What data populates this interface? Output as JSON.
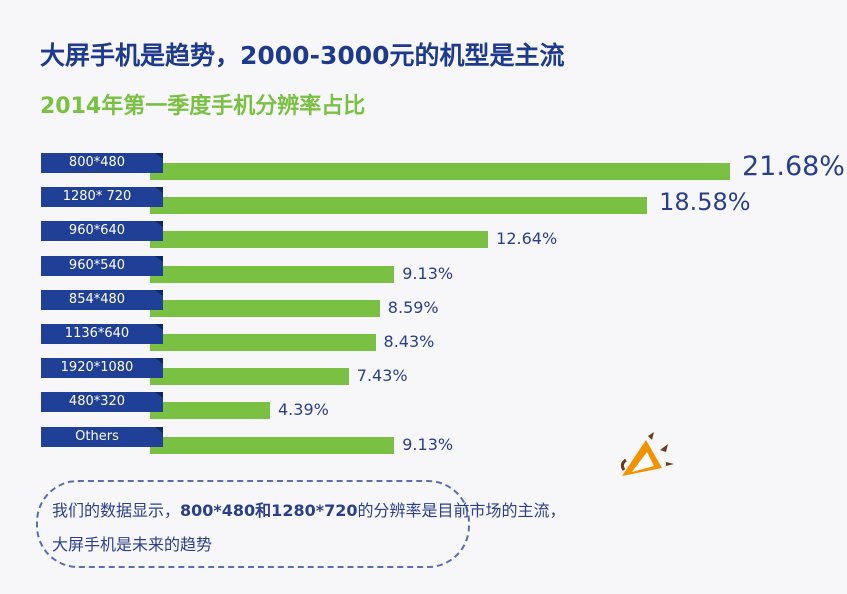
{
  "header": {
    "title": "大屏手机是趋势，2000-3000元的机型是主流",
    "subtitle": "2014年第一季度手机分辨率占比"
  },
  "chart_data": {
    "type": "bar",
    "orientation": "horizontal",
    "title": "2014年第一季度手机分辨率占比",
    "categories": [
      "800*480",
      "1280* 720",
      "960*640",
      "960*540",
      "854*480",
      "1136*640",
      "1920*1080",
      "480*320",
      "Others"
    ],
    "values": [
      21.68,
      18.58,
      12.64,
      9.13,
      8.59,
      8.43,
      7.43,
      4.39,
      9.13
    ],
    "labels": [
      "21.68%",
      "18.58%",
      "12.64%",
      "9.13%",
      "8.59%",
      "8.43%",
      "7.43%",
      "4.39%",
      "9.13%"
    ],
    "unit": "%",
    "colors": {
      "bar": "#7ac143",
      "label_box": "#1f4096",
      "value_text": "#2a3f8c"
    }
  },
  "note": {
    "line1_a": "我们的数据显示，",
    "line1_b": "800*480和1280*720",
    "line1_c": "的分辨率是目前市场的主流，",
    "line2": "大屏手机是未来的趋势"
  }
}
